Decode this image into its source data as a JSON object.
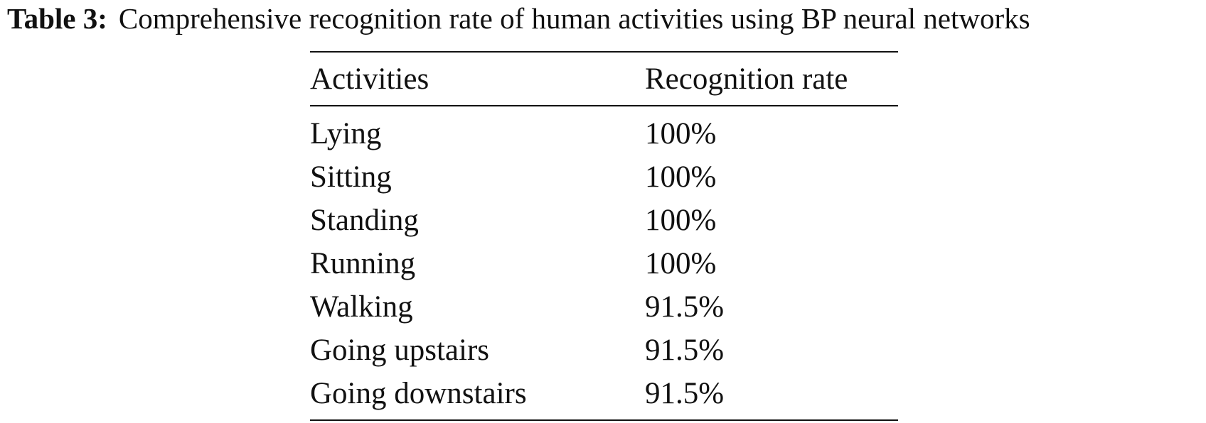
{
  "caption": {
    "label": "Table 3:",
    "title": "Comprehensive recognition rate of human activities using BP neural networks"
  },
  "table": {
    "headers": [
      "Activities",
      "Recognition rate"
    ],
    "rows": [
      [
        "Lying",
        "100%"
      ],
      [
        "Sitting",
        "100%"
      ],
      [
        "Standing",
        "100%"
      ],
      [
        "Running",
        "100%"
      ],
      [
        "Walking",
        "91.5%"
      ],
      [
        "Going upstairs",
        "91.5%"
      ],
      [
        "Going downstairs",
        "91.5%"
      ]
    ]
  }
}
